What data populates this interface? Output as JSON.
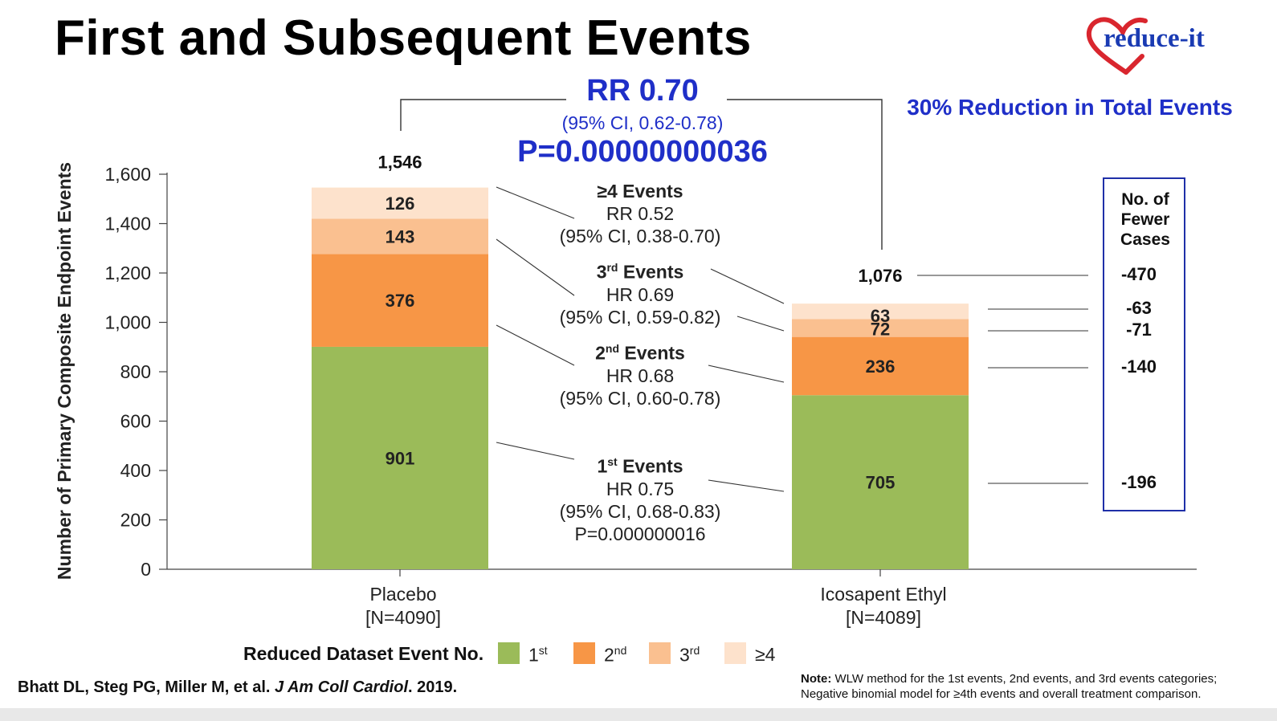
{
  "title": "First and Subsequent Events",
  "logo": {
    "text": "reduce-it",
    "heart_color": "#d9262e",
    "text_color": "#1a3bb3"
  },
  "summary": {
    "rr": "RR 0.70",
    "ci": "(95% CI, 0.62-0.78)",
    "p": "P=0.00000000036",
    "reduction": "30% Reduction in Total Events"
  },
  "chart_data": {
    "type": "bar",
    "stacked": true,
    "ylabel": "Number of Primary Composite Endpoint Events",
    "ylim": [
      0,
      1600
    ],
    "yticks": [
      0,
      200,
      400,
      600,
      800,
      1000,
      1200,
      1400,
      1600
    ],
    "ytick_labels": [
      "0",
      "200",
      "400",
      "600",
      "800",
      "1,000",
      "1,200",
      "1,400",
      "1,600"
    ],
    "categories": [
      {
        "name": "Placebo",
        "sub": "[N=4090]",
        "total": 1546,
        "total_label": "1,546"
      },
      {
        "name": "Icosapent Ethyl",
        "sub": "[N=4089]",
        "total": 1076,
        "total_label": "1,076"
      }
    ],
    "series": [
      {
        "key": "1st",
        "values": [
          901,
          705
        ],
        "color": "#9bbb59"
      },
      {
        "key": "2nd",
        "values": [
          376,
          236
        ],
        "color": "#f79646"
      },
      {
        "key": "3rd",
        "values": [
          143,
          72
        ],
        "color": "#fac090"
      },
      {
        "key": "4plus",
        "values": [
          126,
          63
        ],
        "color": "#fde2cc"
      }
    ],
    "grid": false
  },
  "annotations": [
    {
      "key": "4plus",
      "head": "≥4 Events",
      "head_main": "",
      "head_sup": "",
      "head_rest": "",
      "lines": [
        "RR 0.52",
        "(95% CI, 0.38-0.70)"
      ]
    },
    {
      "key": "3rd",
      "head": "",
      "head_main": "3",
      "head_sup": "rd",
      "head_rest": " Events",
      "lines": [
        "HR 0.69",
        "(95% CI, 0.59-0.82)"
      ]
    },
    {
      "key": "2nd",
      "head": "",
      "head_main": "2",
      "head_sup": "nd",
      "head_rest": " Events",
      "lines": [
        "HR 0.68",
        "(95% CI, 0.60-0.78)"
      ]
    },
    {
      "key": "1st",
      "head": "",
      "head_main": "1",
      "head_sup": "st",
      "head_rest": " Events",
      "lines": [
        "HR 0.75",
        "(95% CI, 0.68-0.83)",
        "P=0.000000016"
      ]
    }
  ],
  "fewer_cases": {
    "title": [
      "No. of",
      "Fewer",
      "Cases"
    ],
    "total": "-470",
    "4plus": "-63",
    "3rd": "-71",
    "2nd": "-140",
    "1st": "-196"
  },
  "legend": {
    "title": "Reduced Dataset Event No.",
    "items": [
      {
        "main": "1",
        "sup": "st",
        "color": "#9bbb59"
      },
      {
        "main": "2",
        "sup": "nd",
        "color": "#f79646"
      },
      {
        "main": "3",
        "sup": "rd",
        "color": "#fac090"
      },
      {
        "main": "≥4",
        "sup": "",
        "color": "#fde2cc"
      }
    ]
  },
  "citation": {
    "authors": "Bhatt DL, Steg PG, Miller M, et al. ",
    "journal": "J Am Coll Cardiol",
    "year": ". 2019."
  },
  "note": {
    "label": "Note:",
    "line1": " WLW method for the 1st events, 2nd events, and 3rd events categories;",
    "line2": "Negative binomial model for ≥4th events and overall treatment comparison."
  }
}
